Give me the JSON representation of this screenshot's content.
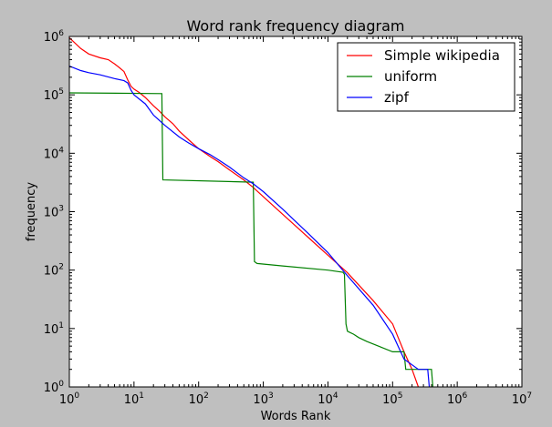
{
  "chart_data": {
    "type": "line",
    "title": "Word rank frequency diagram",
    "xlabel": "Words Rank",
    "ylabel": "frequency",
    "xscale": "log",
    "yscale": "log",
    "xlim": [
      1,
      10000000
    ],
    "ylim": [
      1,
      1000000
    ],
    "grid": false,
    "legend_position": "top-right",
    "background": "#bfbfbf",
    "plot_background": "#ffffff",
    "x_ticks": [
      {
        "value": 1,
        "mantissa": "10",
        "exp": "0"
      },
      {
        "value": 10,
        "mantissa": "10",
        "exp": "1"
      },
      {
        "value": 100,
        "mantissa": "10",
        "exp": "2"
      },
      {
        "value": 1000,
        "mantissa": "10",
        "exp": "3"
      },
      {
        "value": 10000,
        "mantissa": "10",
        "exp": "4"
      },
      {
        "value": 100000,
        "mantissa": "10",
        "exp": "5"
      },
      {
        "value": 1000000,
        "mantissa": "10",
        "exp": "6"
      },
      {
        "value": 10000000,
        "mantissa": "10",
        "exp": "7"
      }
    ],
    "y_ticks": [
      {
        "value": 1,
        "mantissa": "10",
        "exp": "0"
      },
      {
        "value": 10,
        "mantissa": "10",
        "exp": "1"
      },
      {
        "value": 100,
        "mantissa": "10",
        "exp": "2"
      },
      {
        "value": 1000,
        "mantissa": "10",
        "exp": "3"
      },
      {
        "value": 10000,
        "mantissa": "10",
        "exp": "4"
      },
      {
        "value": 100000,
        "mantissa": "10",
        "exp": "5"
      },
      {
        "value": 1000000,
        "mantissa": "10",
        "exp": "6"
      }
    ],
    "series": [
      {
        "name": "Simple wikipedia",
        "color": "#ff0000",
        "points": [
          [
            1,
            950000
          ],
          [
            1.5,
            620000
          ],
          [
            2,
            500000
          ],
          [
            3,
            430000
          ],
          [
            4,
            400000
          ],
          [
            5,
            340000
          ],
          [
            6,
            290000
          ],
          [
            7,
            250000
          ],
          [
            8,
            180000
          ],
          [
            9,
            140000
          ],
          [
            10,
            125000
          ],
          [
            12,
            110000
          ],
          [
            15,
            90000
          ],
          [
            20,
            65000
          ],
          [
            25,
            52000
          ],
          [
            30,
            42000
          ],
          [
            40,
            32000
          ],
          [
            50,
            24000
          ],
          [
            70,
            17000
          ],
          [
            100,
            12000
          ],
          [
            150,
            8800
          ],
          [
            200,
            7200
          ],
          [
            300,
            5200
          ],
          [
            500,
            3500
          ],
          [
            700,
            2600
          ],
          [
            1000,
            1800
          ],
          [
            2000,
            900
          ],
          [
            5000,
            360
          ],
          [
            10000,
            180
          ],
          [
            20000,
            90
          ],
          [
            50000,
            30
          ],
          [
            100000,
            12
          ],
          [
            150000,
            4
          ],
          [
            200000,
            2
          ],
          [
            250000,
            1
          ]
        ]
      },
      {
        "name": "uniform",
        "color": "#008000",
        "points": [
          [
            1,
            108000
          ],
          [
            27,
            105000
          ],
          [
            28,
            3500
          ],
          [
            700,
            3200
          ],
          [
            730,
            140
          ],
          [
            800,
            130
          ],
          [
            2000,
            118
          ],
          [
            10000,
            100
          ],
          [
            17000,
            92
          ],
          [
            18000,
            85
          ],
          [
            19000,
            12
          ],
          [
            20000,
            9
          ],
          [
            25000,
            8
          ],
          [
            30000,
            7
          ],
          [
            40000,
            6
          ],
          [
            60000,
            5
          ],
          [
            100000,
            4
          ],
          [
            150000,
            4
          ],
          [
            160000,
            2
          ],
          [
            400000,
            2
          ],
          [
            420000,
            1
          ]
        ]
      },
      {
        "name": "zipf",
        "color": "#0000ff",
        "points": [
          [
            1,
            310000
          ],
          [
            1.5,
            260000
          ],
          [
            2,
            240000
          ],
          [
            3,
            220000
          ],
          [
            5,
            190000
          ],
          [
            7,
            175000
          ],
          [
            8,
            160000
          ],
          [
            9,
            120000
          ],
          [
            10,
            100000
          ],
          [
            15,
            70000
          ],
          [
            20,
            45000
          ],
          [
            30,
            30000
          ],
          [
            50,
            19000
          ],
          [
            70,
            15000
          ],
          [
            100,
            12000
          ],
          [
            150,
            9500
          ],
          [
            200,
            7800
          ],
          [
            300,
            5800
          ],
          [
            500,
            3800
          ],
          [
            700,
            3000
          ],
          [
            1000,
            2200
          ],
          [
            2000,
            1100
          ],
          [
            5000,
            420
          ],
          [
            10000,
            200
          ],
          [
            20000,
            80
          ],
          [
            50000,
            25
          ],
          [
            100000,
            8
          ],
          [
            150000,
            3
          ],
          [
            250000,
            2
          ],
          [
            350000,
            2
          ],
          [
            370000,
            1
          ]
        ]
      }
    ]
  }
}
